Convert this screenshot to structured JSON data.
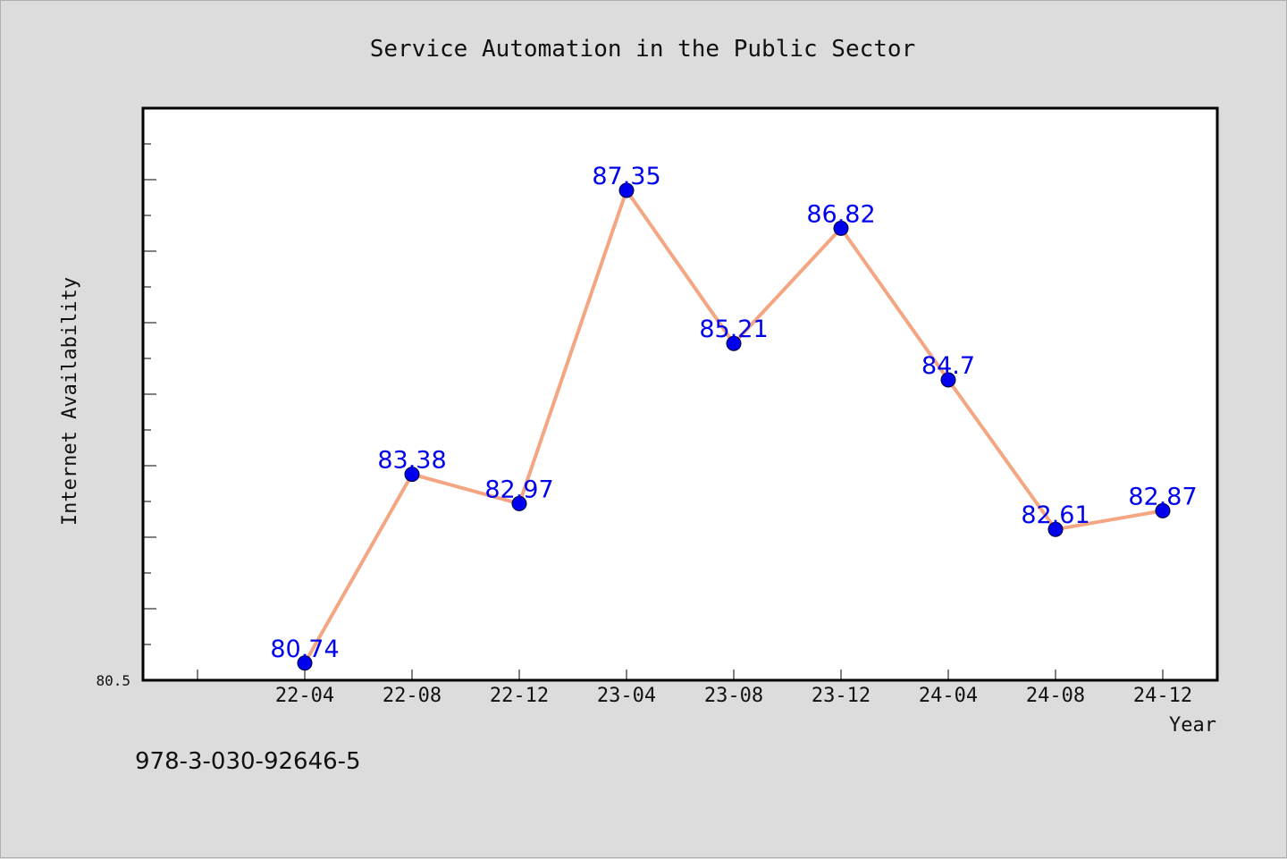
{
  "chart_data": {
    "type": "line",
    "title": "Service Automation in the Public Sector",
    "xlabel": "Year",
    "ylabel": "Internet Availability",
    "categories": [
      "22-04",
      "22-08",
      "22-12",
      "23-04",
      "23-08",
      "23-12",
      "24-04",
      "24-08",
      "24-12"
    ],
    "series": [
      {
        "values": [
          80.74,
          83.38,
          82.97,
          87.35,
          85.21,
          86.82,
          84.7,
          82.61,
          82.87
        ]
      }
    ],
    "data_labels": [
      "80.74",
      "83.38",
      "82.97",
      "87.35",
      "85.21",
      "86.82",
      "84.7",
      "82.61",
      "82.87"
    ],
    "ylim": [
      80.5,
      88.5
    ],
    "y_tick_label": "80.5",
    "grid": false,
    "legend": "none",
    "colors": {
      "line": "#f4a582",
      "marker": "#0000ee",
      "label": "#0000ee",
      "background": "#dcdcdc",
      "plot_background": "#ffffff"
    }
  },
  "footer": {
    "isbn": "978-3-030-92646-5"
  }
}
